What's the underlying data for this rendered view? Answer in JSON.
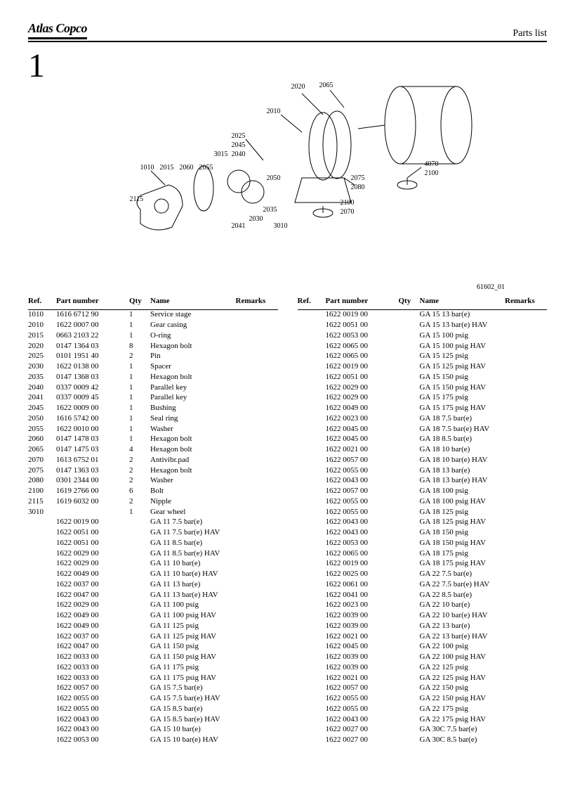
{
  "header": {
    "logo_text": "Atlas Copco",
    "page_title": "Parts list"
  },
  "figure": {
    "number": "1",
    "drawing_id": "61602_01",
    "callouts": [
      "2020",
      "2065",
      "2010",
      "2025",
      "2045",
      "3015",
      "2040",
      "4070",
      "2100",
      "1010",
      "2015",
      "2060",
      "2055",
      "2050",
      "2075",
      "2080",
      "2115",
      "2035",
      "2030",
      "2041",
      "3010",
      "2100",
      "2070"
    ]
  },
  "tables": {
    "columns": [
      "Ref.",
      "Part number",
      "Qty",
      "Name",
      "Remarks"
    ],
    "column_keys": [
      "ref",
      "part",
      "qty",
      "name",
      "remarks"
    ],
    "left_rows": [
      {
        "ref": "1010",
        "part": "1616 6712 90",
        "qty": "1",
        "name": "Service stage",
        "remarks": ""
      },
      {
        "ref": "2010",
        "part": "1622 0007 00",
        "qty": "1",
        "name": "Gear casing",
        "remarks": ""
      },
      {
        "ref": "2015",
        "part": "0663 2103 22",
        "qty": "1",
        "name": "O-ring",
        "remarks": ""
      },
      {
        "ref": "2020",
        "part": "0147 1364 03",
        "qty": "8",
        "name": "Hexagon bolt",
        "remarks": ""
      },
      {
        "ref": "2025",
        "part": "0101 1951 40",
        "qty": "2",
        "name": "Pin",
        "remarks": ""
      },
      {
        "ref": "2030",
        "part": "1622 0138 00",
        "qty": "1",
        "name": "Spacer",
        "remarks": ""
      },
      {
        "ref": "2035",
        "part": "0147 1368 03",
        "qty": "1",
        "name": "Hexagon bolt",
        "remarks": ""
      },
      {
        "ref": "2040",
        "part": "0337 0009 42",
        "qty": "1",
        "name": "Parallel key",
        "remarks": ""
      },
      {
        "ref": "2041",
        "part": "0337 0009 45",
        "qty": "1",
        "name": "Parallel key",
        "remarks": ""
      },
      {
        "ref": "2045",
        "part": "1622 0009 00",
        "qty": "1",
        "name": "Bushing",
        "remarks": ""
      },
      {
        "ref": "2050",
        "part": "1616 5742 00",
        "qty": "1",
        "name": "Seal ring",
        "remarks": ""
      },
      {
        "ref": "2055",
        "part": "1622 0010 00",
        "qty": "1",
        "name": "Washer",
        "remarks": ""
      },
      {
        "ref": "2060",
        "part": "0147 1478 03",
        "qty": "1",
        "name": "Hexagon bolt",
        "remarks": ""
      },
      {
        "ref": "2065",
        "part": "0147 1475 03",
        "qty": "4",
        "name": "Hexagon bolt",
        "remarks": ""
      },
      {
        "ref": "2070",
        "part": "1613 6752 01",
        "qty": "2",
        "name": "Antivibr.pad",
        "remarks": ""
      },
      {
        "ref": "2075",
        "part": "0147 1363 03",
        "qty": "2",
        "name": "Hexagon bolt",
        "remarks": ""
      },
      {
        "ref": "2080",
        "part": "0301 2344 00",
        "qty": "2",
        "name": "Washer",
        "remarks": ""
      },
      {
        "ref": "2100",
        "part": "1619 2766 00",
        "qty": "6",
        "name": "Bolt",
        "remarks": ""
      },
      {
        "ref": "2115",
        "part": "1619 6032 00",
        "qty": "2",
        "name": "Nipple",
        "remarks": ""
      },
      {
        "ref": "3010",
        "part": "",
        "qty": "1",
        "name": "Gear wheel",
        "remarks": ""
      },
      {
        "ref": "",
        "part": "1622 0019 00",
        "qty": "",
        "name": "GA 11 7.5 bar(e)",
        "remarks": ""
      },
      {
        "ref": "",
        "part": "1622 0051 00",
        "qty": "",
        "name": "GA 11 7.5 bar(e) HAV",
        "remarks": ""
      },
      {
        "ref": "",
        "part": "1622 0051 00",
        "qty": "",
        "name": "GA 11 8.5 bar(e)",
        "remarks": ""
      },
      {
        "ref": "",
        "part": "1622 0029 00",
        "qty": "",
        "name": "GA 11 8.5 bar(e) HAV",
        "remarks": ""
      },
      {
        "ref": "",
        "part": "1622 0029 00",
        "qty": "",
        "name": "GA 11 10 bar(e)",
        "remarks": ""
      },
      {
        "ref": "",
        "part": "1622 0049 00",
        "qty": "",
        "name": "GA 11 10 bar(e) HAV",
        "remarks": ""
      },
      {
        "ref": "",
        "part": "1622 0037 00",
        "qty": "",
        "name": "GA 11 13 bar(e)",
        "remarks": ""
      },
      {
        "ref": "",
        "part": "1622 0047 00",
        "qty": "",
        "name": "GA 11 13 bar(e) HAV",
        "remarks": ""
      },
      {
        "ref": "",
        "part": "1622 0029 00",
        "qty": "",
        "name": "GA 11 100 psig",
        "remarks": ""
      },
      {
        "ref": "",
        "part": "1622 0049 00",
        "qty": "",
        "name": "GA 11 100 psig HAV",
        "remarks": ""
      },
      {
        "ref": "",
        "part": "1622 0049 00",
        "qty": "",
        "name": "GA 11 125 psig",
        "remarks": ""
      },
      {
        "ref": "",
        "part": "1622 0037 00",
        "qty": "",
        "name": "GA 11 125 psig HAV",
        "remarks": ""
      },
      {
        "ref": "",
        "part": "1622 0047 00",
        "qty": "",
        "name": "GA 11 150 psig",
        "remarks": ""
      },
      {
        "ref": "",
        "part": "1622 0033 00",
        "qty": "",
        "name": "GA 11 150 psig HAV",
        "remarks": ""
      },
      {
        "ref": "",
        "part": "1622 0033 00",
        "qty": "",
        "name": "GA 11 175 psig",
        "remarks": ""
      },
      {
        "ref": "",
        "part": "1622 0033 00",
        "qty": "",
        "name": "GA 11 175 psig HAV",
        "remarks": ""
      },
      {
        "ref": "",
        "part": "1622 0057 00",
        "qty": "",
        "name": "GA 15 7.5 bar(e)",
        "remarks": ""
      },
      {
        "ref": "",
        "part": "1622 0055 00",
        "qty": "",
        "name": "GA 15 7.5 bar(e) HAV",
        "remarks": ""
      },
      {
        "ref": "",
        "part": "1622 0055 00",
        "qty": "",
        "name": "GA 15 8.5 bar(e)",
        "remarks": ""
      },
      {
        "ref": "",
        "part": "1622 0043 00",
        "qty": "",
        "name": "GA 15 8.5 bar(e) HAV",
        "remarks": ""
      },
      {
        "ref": "",
        "part": "1622 0043 00",
        "qty": "",
        "name": "GA 15 10 bar(e)",
        "remarks": ""
      },
      {
        "ref": "",
        "part": "1622 0053 00",
        "qty": "",
        "name": "GA 15 10 bar(e) HAV",
        "remarks": ""
      }
    ],
    "right_rows": [
      {
        "ref": "",
        "part": "1622 0019 00",
        "qty": "",
        "name": "GA 15 13 bar(e)",
        "remarks": ""
      },
      {
        "ref": "",
        "part": "1622 0051 00",
        "qty": "",
        "name": "GA 15 13 bar(e) HAV",
        "remarks": ""
      },
      {
        "ref": "",
        "part": "1622 0053 00",
        "qty": "",
        "name": "GA 15 100 psig",
        "remarks": ""
      },
      {
        "ref": "",
        "part": "1622 0065 00",
        "qty": "",
        "name": "GA 15 100 psig HAV",
        "remarks": ""
      },
      {
        "ref": "",
        "part": "1622 0065 00",
        "qty": "",
        "name": "GA 15 125 psig",
        "remarks": ""
      },
      {
        "ref": "",
        "part": "1622 0019 00",
        "qty": "",
        "name": "GA 15 125 psig HAV",
        "remarks": ""
      },
      {
        "ref": "",
        "part": "1622 0051 00",
        "qty": "",
        "name": "GA 15 150 psig",
        "remarks": ""
      },
      {
        "ref": "",
        "part": "1622 0029 00",
        "qty": "",
        "name": "GA 15 150 psig HAV",
        "remarks": ""
      },
      {
        "ref": "",
        "part": "1622 0029 00",
        "qty": "",
        "name": "GA 15 175 psig",
        "remarks": ""
      },
      {
        "ref": "",
        "part": "1622 0049 00",
        "qty": "",
        "name": "GA 15 175 psig HAV",
        "remarks": ""
      },
      {
        "ref": "",
        "part": "1622 0023 00",
        "qty": "",
        "name": "GA 18 7.5 bar(e)",
        "remarks": ""
      },
      {
        "ref": "",
        "part": "1622 0045 00",
        "qty": "",
        "name": "GA 18 7.5 bar(e) HAV",
        "remarks": ""
      },
      {
        "ref": "",
        "part": "1622 0045 00",
        "qty": "",
        "name": "GA 18 8.5 bar(e)",
        "remarks": ""
      },
      {
        "ref": "",
        "part": "1622 0021 00",
        "qty": "",
        "name": "GA 18 10 bar(e)",
        "remarks": ""
      },
      {
        "ref": "",
        "part": "1622 0057 00",
        "qty": "",
        "name": "GA 18 10 bar(e) HAV",
        "remarks": ""
      },
      {
        "ref": "",
        "part": "1622 0055 00",
        "qty": "",
        "name": "GA 18 13 bar(e)",
        "remarks": ""
      },
      {
        "ref": "",
        "part": "1622 0043 00",
        "qty": "",
        "name": "GA 18 13 bar(e) HAV",
        "remarks": ""
      },
      {
        "ref": "",
        "part": "1622 0057 00",
        "qty": "",
        "name": "GA 18 100 psig",
        "remarks": ""
      },
      {
        "ref": "",
        "part": "1622 0055 00",
        "qty": "",
        "name": "GA 18 100 psig HAV",
        "remarks": ""
      },
      {
        "ref": "",
        "part": "1622 0055 00",
        "qty": "",
        "name": "GA 18 125 psig",
        "remarks": ""
      },
      {
        "ref": "",
        "part": "1622 0043 00",
        "qty": "",
        "name": "GA 18 125 psig HAV",
        "remarks": ""
      },
      {
        "ref": "",
        "part": "1622 0043 00",
        "qty": "",
        "name": "GA 18 150 psig",
        "remarks": ""
      },
      {
        "ref": "",
        "part": "1622 0053 00",
        "qty": "",
        "name": "GA 18 150 psig HAV",
        "remarks": ""
      },
      {
        "ref": "",
        "part": "1622 0065 00",
        "qty": "",
        "name": "GA 18 175 psig",
        "remarks": ""
      },
      {
        "ref": "",
        "part": "1622 0019 00",
        "qty": "",
        "name": "GA 18 175 psig HAV",
        "remarks": ""
      },
      {
        "ref": "",
        "part": "1622 0025 00",
        "qty": "",
        "name": "GA 22 7.5 bar(e)",
        "remarks": ""
      },
      {
        "ref": "",
        "part": "1622 0061 00",
        "qty": "",
        "name": "GA 22 7.5 bar(e) HAV",
        "remarks": ""
      },
      {
        "ref": "",
        "part": "1622 0041 00",
        "qty": "",
        "name": "GA 22 8.5 bar(e)",
        "remarks": ""
      },
      {
        "ref": "",
        "part": "1622 0023 00",
        "qty": "",
        "name": "GA 22 10 bar(e)",
        "remarks": ""
      },
      {
        "ref": "",
        "part": "1622 0039 00",
        "qty": "",
        "name": "GA 22 10 bar(e) HAV",
        "remarks": ""
      },
      {
        "ref": "",
        "part": "1622 0039 00",
        "qty": "",
        "name": "GA 22 13 bar(e)",
        "remarks": ""
      },
      {
        "ref": "",
        "part": "1622 0021 00",
        "qty": "",
        "name": "GA 22 13 bar(e) HAV",
        "remarks": ""
      },
      {
        "ref": "",
        "part": "1622 0045 00",
        "qty": "",
        "name": "GA 22 100 psig",
        "remarks": ""
      },
      {
        "ref": "",
        "part": "1622 0039 00",
        "qty": "",
        "name": "GA 22 100 psig HAV",
        "remarks": ""
      },
      {
        "ref": "",
        "part": "1622 0039 00",
        "qty": "",
        "name": "GA 22 125 psig",
        "remarks": ""
      },
      {
        "ref": "",
        "part": "1622 0021 00",
        "qty": "",
        "name": "GA 22 125 psig HAV",
        "remarks": ""
      },
      {
        "ref": "",
        "part": "1622 0057 00",
        "qty": "",
        "name": "GA 22 150 psig",
        "remarks": ""
      },
      {
        "ref": "",
        "part": "1622 0055 00",
        "qty": "",
        "name": "GA 22 150 psig HAV",
        "remarks": ""
      },
      {
        "ref": "",
        "part": "1622 0055 00",
        "qty": "",
        "name": "GA 22 175 psig",
        "remarks": ""
      },
      {
        "ref": "",
        "part": "1622 0043 00",
        "qty": "",
        "name": "GA 22 175 psig HAV",
        "remarks": ""
      },
      {
        "ref": "",
        "part": "1622 0027 00",
        "qty": "",
        "name": "GA 30C 7.5 bar(e)",
        "remarks": ""
      },
      {
        "ref": "",
        "part": "1622 0027 00",
        "qty": "",
        "name": "GA 30C 8.5 bar(e)",
        "remarks": ""
      }
    ]
  }
}
